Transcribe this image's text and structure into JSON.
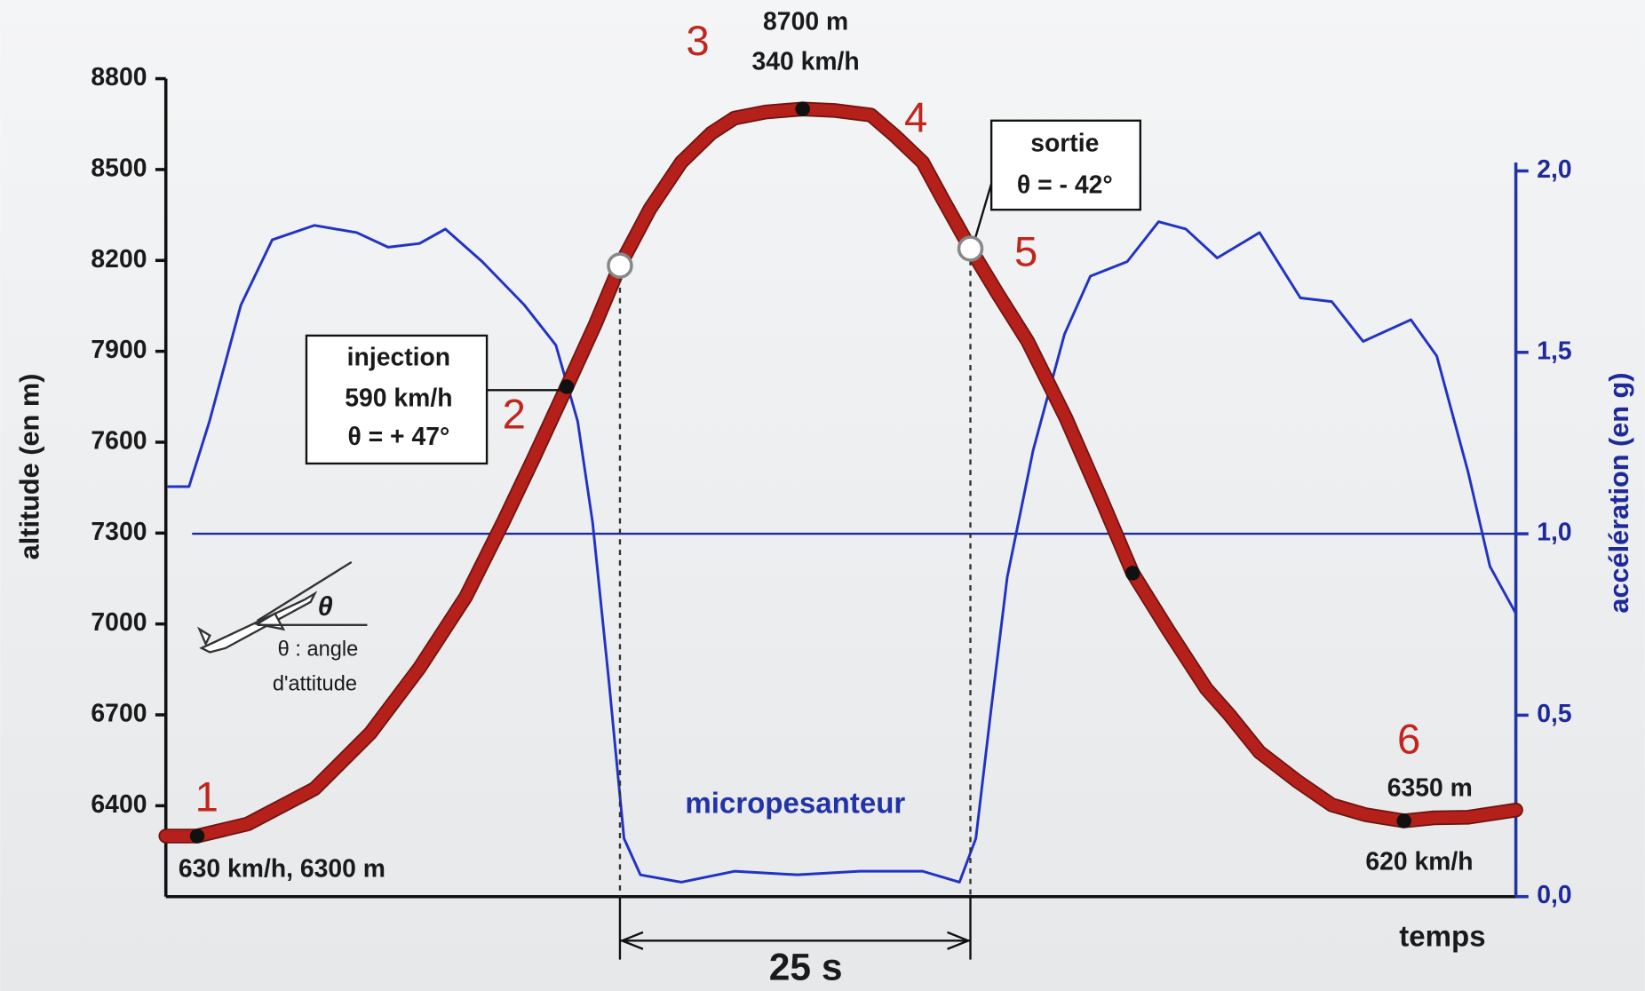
{
  "chart_data": {
    "type": "line",
    "xlabel": "temps",
    "ylabel": "altitude (en m)",
    "y2label": "accélération (en g)",
    "xlim": [
      0,
      99
    ],
    "ylim": [
      6100,
      8800
    ],
    "yticks": [
      6400,
      6700,
      7000,
      7300,
      7600,
      7900,
      8200,
      8500,
      8800
    ],
    "y2lim": [
      0,
      2
    ],
    "y2ticks": [
      {
        "value": 0,
        "label": "0,0"
      },
      {
        "value": 0.5,
        "label": "0,5"
      },
      {
        "value": 1,
        "label": "1,0"
      },
      {
        "value": 1.5,
        "label": "1,5"
      },
      {
        "value": 2,
        "label": "2,0"
      }
    ],
    "hline_y2": 1,
    "series": [
      {
        "color": "#b5201a",
        "x": [
          0,
          2.3,
          6,
          10.9,
          15,
          18.6,
          22,
          24.8,
          27,
          29.4,
          31.5,
          33.3,
          35.5,
          37.8,
          40,
          41.7,
          44,
          46.7,
          49,
          51.7,
          53.5,
          55.5,
          57,
          59,
          61,
          63.2,
          66,
          68.6,
          70.9,
          73.5,
          76.3,
          78,
          80.2,
          83,
          85.5,
          88,
          90.8,
          93,
          95.5,
          99
        ],
        "values": [
          6300,
          6300,
          6340,
          6456,
          6640,
          6855,
          7090,
          7342,
          7550,
          7783,
          7990,
          8183,
          8370,
          8524,
          8620,
          8670,
          8690,
          8700,
          8695,
          8680,
          8610,
          8524,
          8400,
          8239,
          8090,
          7933,
          7680,
          7412,
          7168,
          6980,
          6786,
          6700,
          6577,
          6480,
          6403,
          6370,
          6350,
          6360,
          6362,
          6386
        ]
      },
      {
        "color": "#2233c4",
        "axis": "y2",
        "x": [
          0.2,
          1.7,
          3.2,
          5.5,
          7.8,
          10.9,
          14,
          16.3,
          18.6,
          20.5,
          23.2,
          26.3,
          28.6,
          30.2,
          31.3,
          32.5,
          33.6,
          34.8,
          37.8,
          41.7,
          46.3,
          50.9,
          55.5,
          58.2,
          59.4,
          60.5,
          61.7,
          63.6,
          65.9,
          67.8,
          70.5,
          72.8,
          74.8,
          77.1,
          80.2,
          83.2,
          85.5,
          87.8,
          91.3,
          93.2,
          95.5,
          97.1,
          99
        ],
        "values": [
          1.13,
          1.13,
          1.31,
          1.63,
          1.81,
          1.85,
          1.83,
          1.79,
          1.8,
          1.84,
          1.75,
          1.63,
          1.52,
          1.31,
          1.03,
          0.59,
          0.16,
          0.06,
          0.04,
          0.07,
          0.06,
          0.07,
          0.07,
          0.04,
          0.16,
          0.51,
          0.88,
          1.23,
          1.55,
          1.71,
          1.75,
          1.86,
          1.84,
          1.76,
          1.83,
          1.65,
          1.64,
          1.53,
          1.59,
          1.49,
          1.17,
          0.91,
          0.78
        ]
      }
    ],
    "annotations": {
      "phase_labels": [
        "1",
        "2",
        "3",
        "4",
        "5",
        "6"
      ],
      "start": "630 km/h,  6300 m",
      "injection": [
        "injection",
        "590 km/h",
        "θ = + 47°"
      ],
      "apex": [
        "8700 m",
        "340 km/h"
      ],
      "exit": [
        "sortie",
        "θ = - 42°"
      ],
      "end": [
        "6350 m",
        "620 km/h"
      ],
      "microgravity": "micropesanteur",
      "duration": "25 s",
      "angle_legend": [
        "θ",
        "θ : angle",
        "d'attitude"
      ]
    }
  }
}
